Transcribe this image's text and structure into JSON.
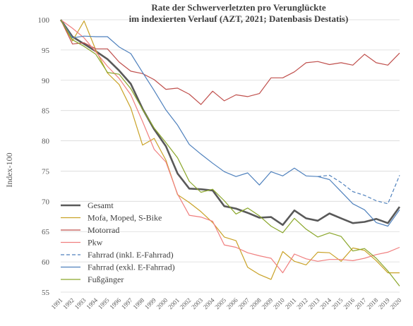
{
  "chart_data": {
    "type": "line",
    "title_line1": "Rate der Schwerverletzten pro Verunglückte",
    "title_line2": "im indexierten Verlauf (AZT, 2021; Datenbasis Destatis)",
    "ylabel": "Index-100",
    "xlabel": "",
    "ylim": [
      55,
      100
    ],
    "yticks": [
      55,
      60,
      65,
      70,
      75,
      80,
      85,
      90,
      95,
      100
    ],
    "grid": true,
    "legend_position": "bottom-left",
    "x": [
      1991,
      1992,
      1993,
      1994,
      1995,
      1996,
      1997,
      1998,
      1999,
      2000,
      2001,
      2002,
      2003,
      2004,
      2005,
      2006,
      2007,
      2008,
      2009,
      2010,
      2011,
      2012,
      2013,
      2014,
      2015,
      2016,
      2017,
      2018,
      2019,
      2020
    ],
    "series": [
      {
        "name": "Gesamt",
        "color": "#595959",
        "width": 2.6,
        "dash": "",
        "values": [
          100,
          97.2,
          96,
          94.8,
          93.5,
          91.6,
          89.4,
          85.3,
          81.9,
          79.1,
          74.6,
          72.1,
          72,
          71.8,
          69.2,
          68.8,
          68.1,
          67.3,
          67.4,
          66.1,
          68.5,
          67.2,
          66.8,
          68,
          67.2,
          66.4,
          66.6,
          67.1,
          66.4,
          69.1
        ]
      },
      {
        "name": "Mofa, Moped, S-Bike",
        "color": "#c9a227",
        "width": 1.2,
        "dash": "",
        "values": [
          100,
          96.5,
          99.8,
          95,
          91.2,
          89.3,
          85.4,
          79.3,
          80.4,
          76.8,
          71.1,
          69.8,
          68.3,
          66.5,
          64.1,
          63.5,
          59.1,
          57.9,
          57.1,
          61.7,
          60.1,
          59.5,
          61.6,
          61.5,
          60.1,
          62.3,
          61.9,
          60.2,
          58.2,
          58.2
        ]
      },
      {
        "name": "Motorrad",
        "color": "#c0504d",
        "width": 1.2,
        "dash": "",
        "values": [
          100,
          96,
          96.2,
          95.2,
          95.2,
          93,
          91.5,
          91.1,
          90.1,
          88.5,
          88.7,
          87.7,
          86,
          88.2,
          86.6,
          87.6,
          87.3,
          87.8,
          90.4,
          90.4,
          91.4,
          92.9,
          93.1,
          92.6,
          92.9,
          92.5,
          94.3,
          92.9,
          92.5,
          94.5
        ]
      },
      {
        "name": "Pkw",
        "color": "#f07f7f",
        "width": 1.2,
        "dash": "",
        "values": [
          100,
          98.6,
          97,
          94.7,
          92.3,
          90.3,
          87.6,
          83.2,
          78.6,
          76.5,
          71.2,
          67.7,
          67.4,
          66.7,
          62.8,
          62.4,
          61.5,
          61,
          60.6,
          58.2,
          61.3,
          60.5,
          60.1,
          60.4,
          60.4,
          60.2,
          60.6,
          61.2,
          61.6,
          62.4
        ]
      },
      {
        "name": "Fahrrad (inkl. E-Fahrrad)",
        "color": "#4f81bd",
        "width": 1.2,
        "dash": "5,3",
        "values": [
          null,
          null,
          null,
          null,
          null,
          null,
          null,
          null,
          null,
          null,
          null,
          null,
          null,
          null,
          null,
          null,
          null,
          null,
          null,
          null,
          null,
          null,
          74.1,
          74.3,
          73.1,
          71.6,
          71,
          70.1,
          69.6,
          74.3
        ]
      },
      {
        "name": "Fahrrad (exkl. E-Fahrrad)",
        "color": "#4f81bd",
        "width": 1.2,
        "dash": "",
        "values": [
          100,
          97,
          97.3,
          97.2,
          97.2,
          95.5,
          94.4,
          91.3,
          88.3,
          85.1,
          82.6,
          79.4,
          77.8,
          76.3,
          74.9,
          74.1,
          74.7,
          72.7,
          74.9,
          74.2,
          75.5,
          74.2,
          74.1,
          73.6,
          71.6,
          69.6,
          68.6,
          66.5,
          65.9,
          68.6
        ]
      },
      {
        "name": "Fußgänger",
        "color": "#8aa62a",
        "width": 1.2,
        "dash": "",
        "values": [
          100,
          96.7,
          95.6,
          94.3,
          91.3,
          91,
          88.6,
          85.2,
          82.1,
          79.7,
          77.2,
          73.3,
          71.5,
          72,
          70.1,
          67.9,
          68.9,
          67.6,
          65.9,
          64.8,
          67.2,
          65.4,
          64.1,
          64.8,
          64.2,
          61.8,
          62.2,
          60.6,
          58.5,
          56
        ]
      }
    ]
  }
}
